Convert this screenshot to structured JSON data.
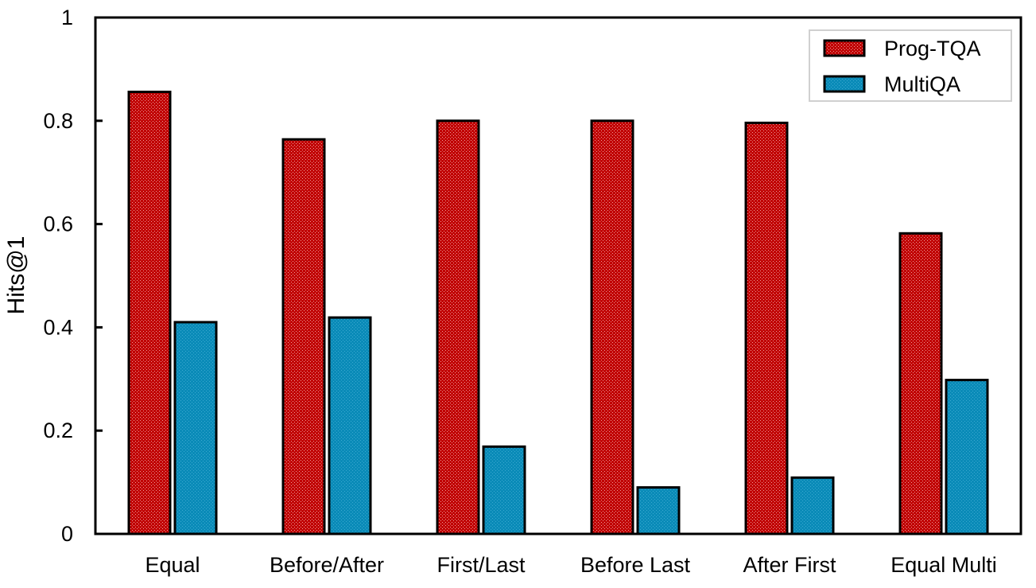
{
  "chart_data": {
    "type": "bar",
    "categories": [
      "Equal",
      "Before/After",
      "First/Last",
      "Before Last",
      "After First",
      "Equal Multi"
    ],
    "series": [
      {
        "name": "Prog-TQA",
        "values": [
          0.856,
          0.764,
          0.8,
          0.8,
          0.796,
          0.582
        ],
        "color": "#c00000"
      },
      {
        "name": "MultiQA",
        "values": [
          0.41,
          0.419,
          0.169,
          0.09,
          0.109,
          0.298
        ],
        "color": "#0a8bb8"
      }
    ],
    "title": "",
    "xlabel": "",
    "ylabel": "Hits@1",
    "ylim": [
      0,
      1
    ],
    "yticks": [
      {
        "value": 0,
        "label": "0"
      },
      {
        "value": 0.2,
        "label": "0.2"
      },
      {
        "value": 0.4,
        "label": "0.4"
      },
      {
        "value": 0.6,
        "label": "0.6"
      },
      {
        "value": 0.8,
        "label": "0.8"
      },
      {
        "value": 1,
        "label": "1"
      }
    ],
    "grid": false,
    "legend_position": "top-right"
  }
}
